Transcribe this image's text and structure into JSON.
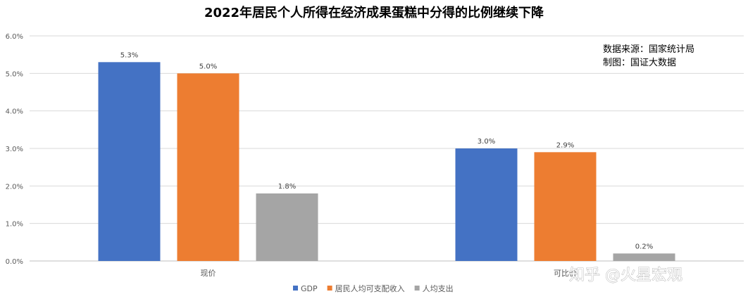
{
  "chart_data": {
    "type": "bar",
    "title": "2022年居民个人所得在经济成果蛋糕中分得的比例继续下降",
    "categories": [
      "现价",
      "可比价"
    ],
    "series": [
      {
        "name": "GDP",
        "color": "#4472C4",
        "values": [
          5.3,
          3.0
        ],
        "labels": [
          "5.3%",
          "3.0%"
        ]
      },
      {
        "name": "居民人均可支配收入",
        "color": "#ED7D31",
        "values": [
          5.0,
          2.9
        ],
        "labels": [
          "5.0%",
          "2.9%"
        ]
      },
      {
        "name": "人均支出",
        "color": "#A5A5A5",
        "values": [
          1.8,
          0.2
        ],
        "labels": [
          "1.8%",
          "0.2%"
        ]
      }
    ],
    "ylim": [
      0,
      6
    ],
    "yticks": [
      {
        "value": 0,
        "label": "0.0%"
      },
      {
        "value": 1,
        "label": "1.0%"
      },
      {
        "value": 2,
        "label": "2.0%"
      },
      {
        "value": 3,
        "label": "3.0%"
      },
      {
        "value": 4,
        "label": "4.0%"
      },
      {
        "value": 5,
        "label": "5.0%"
      },
      {
        "value": 6,
        "label": "6.0%"
      }
    ],
    "grid": true,
    "legend_position": "bottom",
    "annotations": [
      "数据来源：国家统计局",
      "制图：国证大数据"
    ],
    "watermark": "知乎 @火星宏观"
  }
}
